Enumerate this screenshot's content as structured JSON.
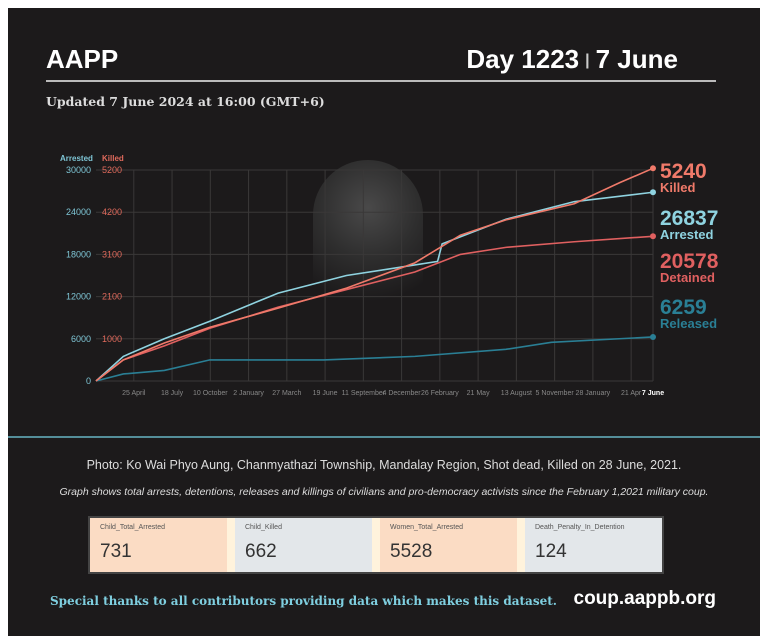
{
  "header": {
    "brand": "AAPP",
    "day": "Day 1223",
    "separator": "|",
    "date": "7 June",
    "updated": "Updated 7 June 2024 at 16:00 (GMT+6)"
  },
  "caption": "Photo: Ko Wai Phyo Aung, Chanmyathazi Township, Mandalay Region, Shot dead, Killed on 28 June, 2021.",
  "note": "Graph shows total arrests, detentions, releases and killings of civilians and pro-democracy activists since the February 1,2021 military coup.",
  "cards": [
    {
      "label": "Child_Total_Arrested",
      "value": "731",
      "color": "#fbdcc4"
    },
    {
      "label": "Child_Killed",
      "value": "662",
      "color": "#e3e7ea"
    },
    {
      "label": "Women_Total_Arrested",
      "value": "5528",
      "color": "#fbdcc4"
    },
    {
      "label": "Death_Penalty_In_Detention",
      "value": "124",
      "color": "#e3e7ea"
    }
  ],
  "footer": {
    "thanks": "Special thanks to all contributors providing data which makes this dataset.",
    "site": "coup.aappb.org"
  },
  "chart_data": {
    "type": "line",
    "xlabel": "",
    "ylabel_left": "Arrested",
    "ylabel_right": "Killed",
    "xlim": [
      0,
      1223
    ],
    "x_ticks": [
      {
        "d": 83,
        "label": "25 April"
      },
      {
        "d": 167,
        "label": "18 July"
      },
      {
        "d": 251,
        "label": "10 October"
      },
      {
        "d": 335,
        "label": "2 January"
      },
      {
        "d": 419,
        "label": "27 March"
      },
      {
        "d": 503,
        "label": "19 June"
      },
      {
        "d": 587,
        "label": "11 September"
      },
      {
        "d": 671,
        "label": "4 December"
      },
      {
        "d": 755,
        "label": "26 February"
      },
      {
        "d": 839,
        "label": "21 May"
      },
      {
        "d": 923,
        "label": "13 August"
      },
      {
        "d": 1007,
        "label": "5 November"
      },
      {
        "d": 1091,
        "label": "28 January"
      },
      {
        "d": 1175,
        "label": "21 Apr"
      },
      {
        "d": 1223,
        "label": "7 June"
      }
    ],
    "y_ticks_arrested": [
      0,
      6000,
      12000,
      18000,
      24000,
      30000
    ],
    "y_ticks_killed": [
      "",
      1000,
      2100,
      3100,
      4200,
      5200
    ],
    "ylim": [
      0,
      30000
    ],
    "series": [
      {
        "name": "Arrested",
        "color": "#8fd3e0",
        "final": "26837",
        "points": [
          [
            0,
            0
          ],
          [
            60,
            3500
          ],
          [
            150,
            6000
          ],
          [
            250,
            8500
          ],
          [
            400,
            12500
          ],
          [
            550,
            15000
          ],
          [
            750,
            17000
          ],
          [
            760,
            19500
          ],
          [
            900,
            23000
          ],
          [
            1050,
            25500
          ],
          [
            1223,
            26837
          ]
        ]
      },
      {
        "name": "Detained",
        "color": "#e06060",
        "final": "20578",
        "points": [
          [
            0,
            0
          ],
          [
            60,
            3000
          ],
          [
            150,
            5000
          ],
          [
            250,
            7500
          ],
          [
            400,
            10500
          ],
          [
            550,
            13000
          ],
          [
            700,
            15500
          ],
          [
            800,
            18000
          ],
          [
            900,
            19000
          ],
          [
            1050,
            19800
          ],
          [
            1223,
            20578
          ]
        ]
      },
      {
        "name": "Released",
        "color": "#2a7f95",
        "final": "6259",
        "points": [
          [
            0,
            0
          ],
          [
            60,
            1000
          ],
          [
            150,
            1500
          ],
          [
            250,
            3000
          ],
          [
            500,
            3000
          ],
          [
            700,
            3500
          ],
          [
            900,
            4500
          ],
          [
            1000,
            5500
          ],
          [
            1223,
            6259
          ]
        ]
      },
      {
        "name": "Killed",
        "color": "#f07a6a",
        "final": "5240",
        "axis": "right",
        "points": [
          [
            0,
            0
          ],
          [
            60,
            500
          ],
          [
            150,
            900
          ],
          [
            250,
            1300
          ],
          [
            400,
            1800
          ],
          [
            550,
            2300
          ],
          [
            700,
            2900
          ],
          [
            800,
            3600
          ],
          [
            900,
            4000
          ],
          [
            1050,
            4400
          ],
          [
            1150,
            4900
          ],
          [
            1223,
            5240
          ]
        ]
      }
    ]
  }
}
